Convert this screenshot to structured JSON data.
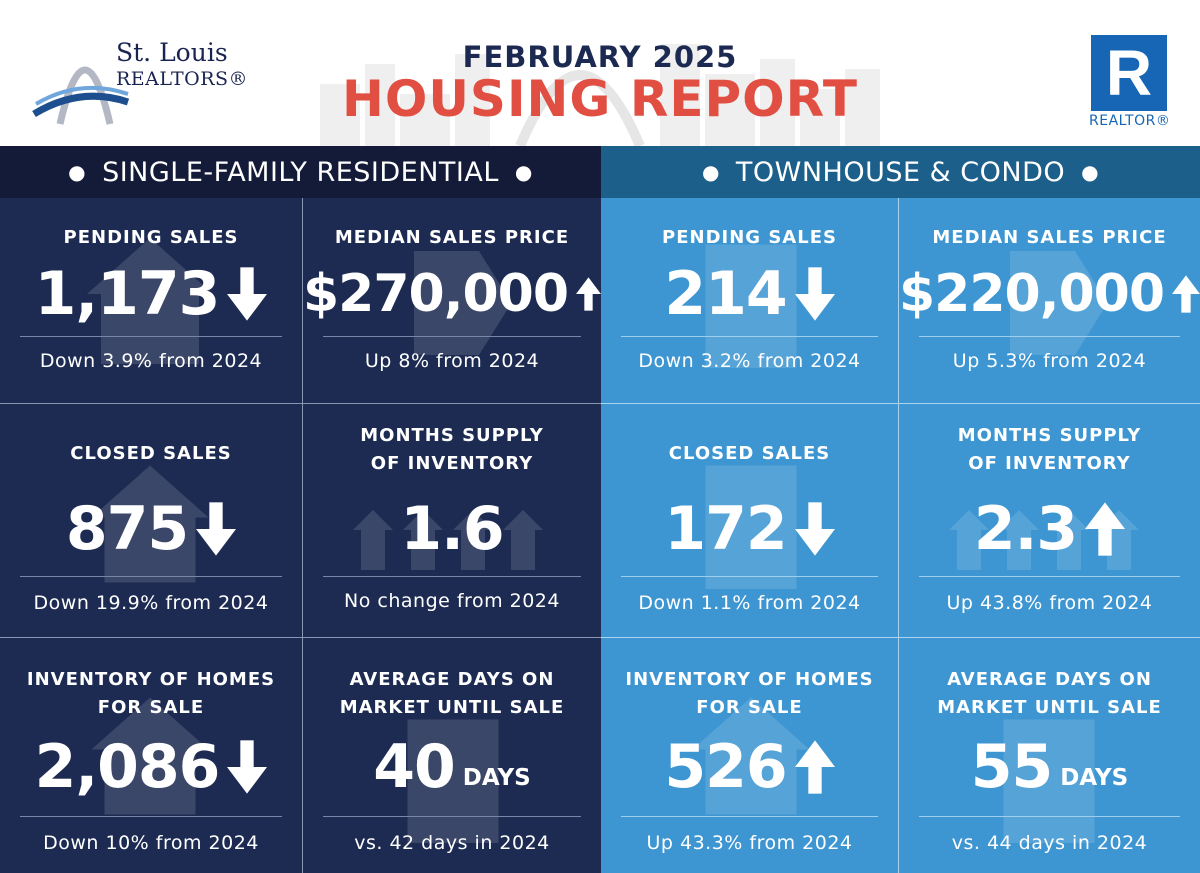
{
  "header": {
    "logo_line1": "St. Louis",
    "logo_line2": "REALTORS®",
    "report_month": "FEBRUARY 2025",
    "report_title": "HOUSING REPORT",
    "realtor_mark": "R",
    "realtor_word": "REALTOR®"
  },
  "colors": {
    "title_red": "#e14f42",
    "navy_panel": "#1d2b52",
    "navy_header": "#131b38",
    "blue_panel": "#3d96d2",
    "blue_header": "#1c5f8a",
    "realtor_blue": "#1766b5"
  },
  "single_family": {
    "heading": "SINGLE-FAMILY RESIDENTIAL",
    "pending_sales": {
      "label": "PENDING SALES",
      "value": "1,173",
      "trend": "down",
      "change": "Down 3.9% from 2024"
    },
    "median_price": {
      "label": "MEDIAN SALES PRICE",
      "value": "$270,000",
      "trend": "up",
      "change": "Up 8% from 2024"
    },
    "closed_sales": {
      "label": "CLOSED SALES",
      "value": "875",
      "trend": "down",
      "change": "Down 19.9% from 2024"
    },
    "months_supply": {
      "label_line1": "MONTHS SUPPLY",
      "label_line2": "OF INVENTORY",
      "value": "1.6",
      "change": "No change from 2024"
    },
    "inventory": {
      "label_line1": "INVENTORY OF HOMES",
      "label_line2": "FOR SALE",
      "value": "2,086",
      "trend": "down",
      "change": "Down 10% from 2024"
    },
    "days_on_market": {
      "label_line1": "AVERAGE DAYS ON",
      "label_line2": "MARKET UNTIL SALE",
      "value": "40",
      "unit": "DAYS",
      "change": "vs. 42 days in 2024"
    }
  },
  "townhouse_condo": {
    "heading": "TOWNHOUSE & CONDO",
    "pending_sales": {
      "label": "PENDING SALES",
      "value": "214",
      "trend": "down",
      "change": "Down 3.2% from 2024"
    },
    "median_price": {
      "label": "MEDIAN SALES PRICE",
      "value": "$220,000",
      "trend": "up",
      "change": "Up 5.3% from 2024"
    },
    "closed_sales": {
      "label": "CLOSED SALES",
      "value": "172",
      "trend": "down",
      "change": "Down 1.1% from 2024"
    },
    "months_supply": {
      "label_line1": "MONTHS SUPPLY",
      "label_line2": "OF INVENTORY",
      "value": "2.3",
      "trend": "up",
      "change": "Up 43.8% from 2024"
    },
    "inventory": {
      "label_line1": "INVENTORY OF HOMES",
      "label_line2": "FOR SALE",
      "value": "526",
      "trend": "up",
      "change": "Up 43.3% from 2024"
    },
    "days_on_market": {
      "label_line1": "AVERAGE DAYS ON",
      "label_line2": "MARKET UNTIL SALE",
      "value": "55",
      "unit": "DAYS",
      "change": "vs. 44 days in 2024"
    }
  }
}
